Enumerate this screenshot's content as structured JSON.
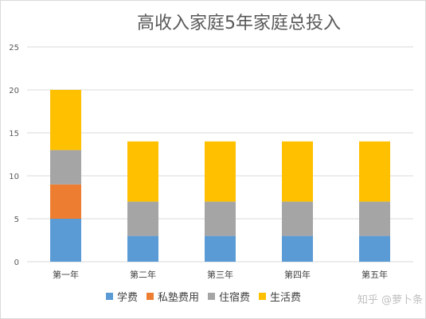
{
  "chart_data": {
    "type": "bar",
    "stacked": true,
    "title": "高收入家庭5年家庭总投入",
    "categories": [
      "第一年",
      "第二年",
      "第三年",
      "第四年",
      "第五年"
    ],
    "series": [
      {
        "name": "学费",
        "values": [
          5,
          3,
          3,
          3,
          3
        ],
        "color": "#5b9bd5"
      },
      {
        "name": "私塾费用",
        "values": [
          4,
          0,
          0,
          0,
          0
        ],
        "color": "#ed7d31"
      },
      {
        "name": "住宿费",
        "values": [
          4,
          4,
          4,
          4,
          4
        ],
        "color": "#a5a5a5"
      },
      {
        "name": "生活费",
        "values": [
          7,
          7,
          7,
          7,
          7
        ],
        "color": "#ffc000"
      }
    ],
    "ylim": [
      0,
      25
    ],
    "yticks": [
      0,
      5,
      10,
      15,
      20,
      25
    ],
    "xlabel": "",
    "ylabel": "",
    "grid": true,
    "legend_position": "bottom"
  },
  "watermark": "知乎 @萝卜条"
}
